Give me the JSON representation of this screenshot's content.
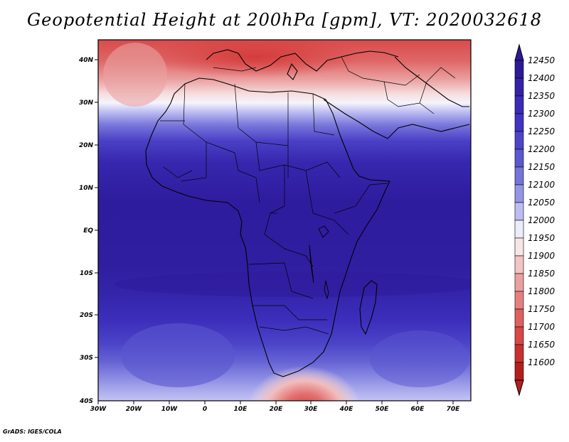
{
  "title": "Geopotential Height at 200hPa [gpm], VT: 2020032618",
  "footer": "GrADS: IGES/COLA",
  "map": {
    "lat_labels": [
      "40N",
      "30N",
      "20N",
      "10N",
      "EQ",
      "10S",
      "20S",
      "30S",
      "40S"
    ],
    "lon_labels": [
      "30W",
      "20W",
      "10W",
      "0",
      "10E",
      "20E",
      "30E",
      "40E",
      "50E",
      "60E",
      "70E"
    ]
  },
  "colorbar": {
    "levels": [
      "12450",
      "12400",
      "12350",
      "12300",
      "12250",
      "12200",
      "12150",
      "12100",
      "12050",
      "12000",
      "11950",
      "11900",
      "11850",
      "11800",
      "11750",
      "11700",
      "11650",
      "11600"
    ],
    "colors": [
      "#2c1a96",
      "#3521a8",
      "#3b2bb8",
      "#4133c4",
      "#4d44c9",
      "#5c58d0",
      "#7474da",
      "#9595e6",
      "#bdbdf2",
      "#ececfb",
      "#f8e6e6",
      "#f2c4c4",
      "#eba0a0",
      "#e48080",
      "#de6060",
      "#d84848",
      "#c83030",
      "#b51e1e"
    ]
  }
}
